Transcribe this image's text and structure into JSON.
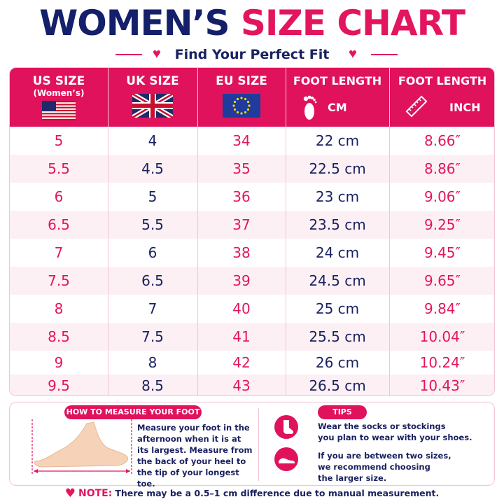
{
  "title": {
    "part1": "WOMEN’S",
    "part2": "SIZE CHART"
  },
  "subtitle": "Find Your Perfect Fit",
  "headers": [
    {
      "label": "US SIZE",
      "sub": "(Women’s)",
      "icon": "us-flag-icon"
    },
    {
      "label": "UK SIZE",
      "sub": "",
      "icon": "uk-flag-icon"
    },
    {
      "label": "EU SIZE",
      "sub": "",
      "icon": "eu-flag-icon"
    },
    {
      "label": "FOOT LENGTH",
      "sub": "CM",
      "icon": "footprint-icon"
    },
    {
      "label": "FOOT LENGTH",
      "sub": "INCH",
      "icon": "ruler-icon"
    }
  ],
  "rows": [
    {
      "us": "5",
      "uk": "4",
      "eu": "34",
      "cm": "22 cm",
      "inch": "8.66″"
    },
    {
      "us": "5.5",
      "uk": "4.5",
      "eu": "35",
      "cm": "22.5 cm",
      "inch": "8.86″"
    },
    {
      "us": "6",
      "uk": "5",
      "eu": "36",
      "cm": "23 cm",
      "inch": "9.06″"
    },
    {
      "us": "6.5",
      "uk": "5.5",
      "eu": "37",
      "cm": "23.5 cm",
      "inch": "9.25″"
    },
    {
      "us": "7",
      "uk": "6",
      "eu": "38",
      "cm": "24 cm",
      "inch": "9.45″"
    },
    {
      "us": "7.5",
      "uk": "6.5",
      "eu": "39",
      "cm": "24.5 cm",
      "inch": "9.65″"
    },
    {
      "us": "8",
      "uk": "7",
      "eu": "40",
      "cm": "25 cm",
      "inch": "9.84″"
    },
    {
      "us": "8.5",
      "uk": "7.5",
      "eu": "41",
      "cm": "25.5 cm",
      "inch": "10.04″"
    },
    {
      "us": "9",
      "uk": "8",
      "eu": "42",
      "cm": "26 cm",
      "inch": "10.24″"
    },
    {
      "us": "9.5",
      "uk": "8.5",
      "eu": "43",
      "cm": "26.5 cm",
      "inch": "10.43″"
    }
  ],
  "measure": {
    "heading": "HOW TO MEASURE YOUR FOOT",
    "lines": [
      "Measure your foot in the",
      "afternoon when it is at",
      "its largest. Measure from",
      "the back of your heel to",
      "the tip of your longest toe."
    ]
  },
  "tips": {
    "heading": "TIPS",
    "tip1": [
      "Wear the socks or stockings",
      "you plan to wear with your shoes."
    ],
    "tip2": [
      "If you are between two sizes,",
      "we recommend choosing",
      "the larger size."
    ]
  },
  "note": {
    "label": "NOTE:",
    "text": "There may be a 0.5–1 cm difference due to manual measurement."
  },
  "colors": {
    "pink": "#e3155f",
    "navy": "#1a2260",
    "row_alt": "#fdf0f4"
  }
}
